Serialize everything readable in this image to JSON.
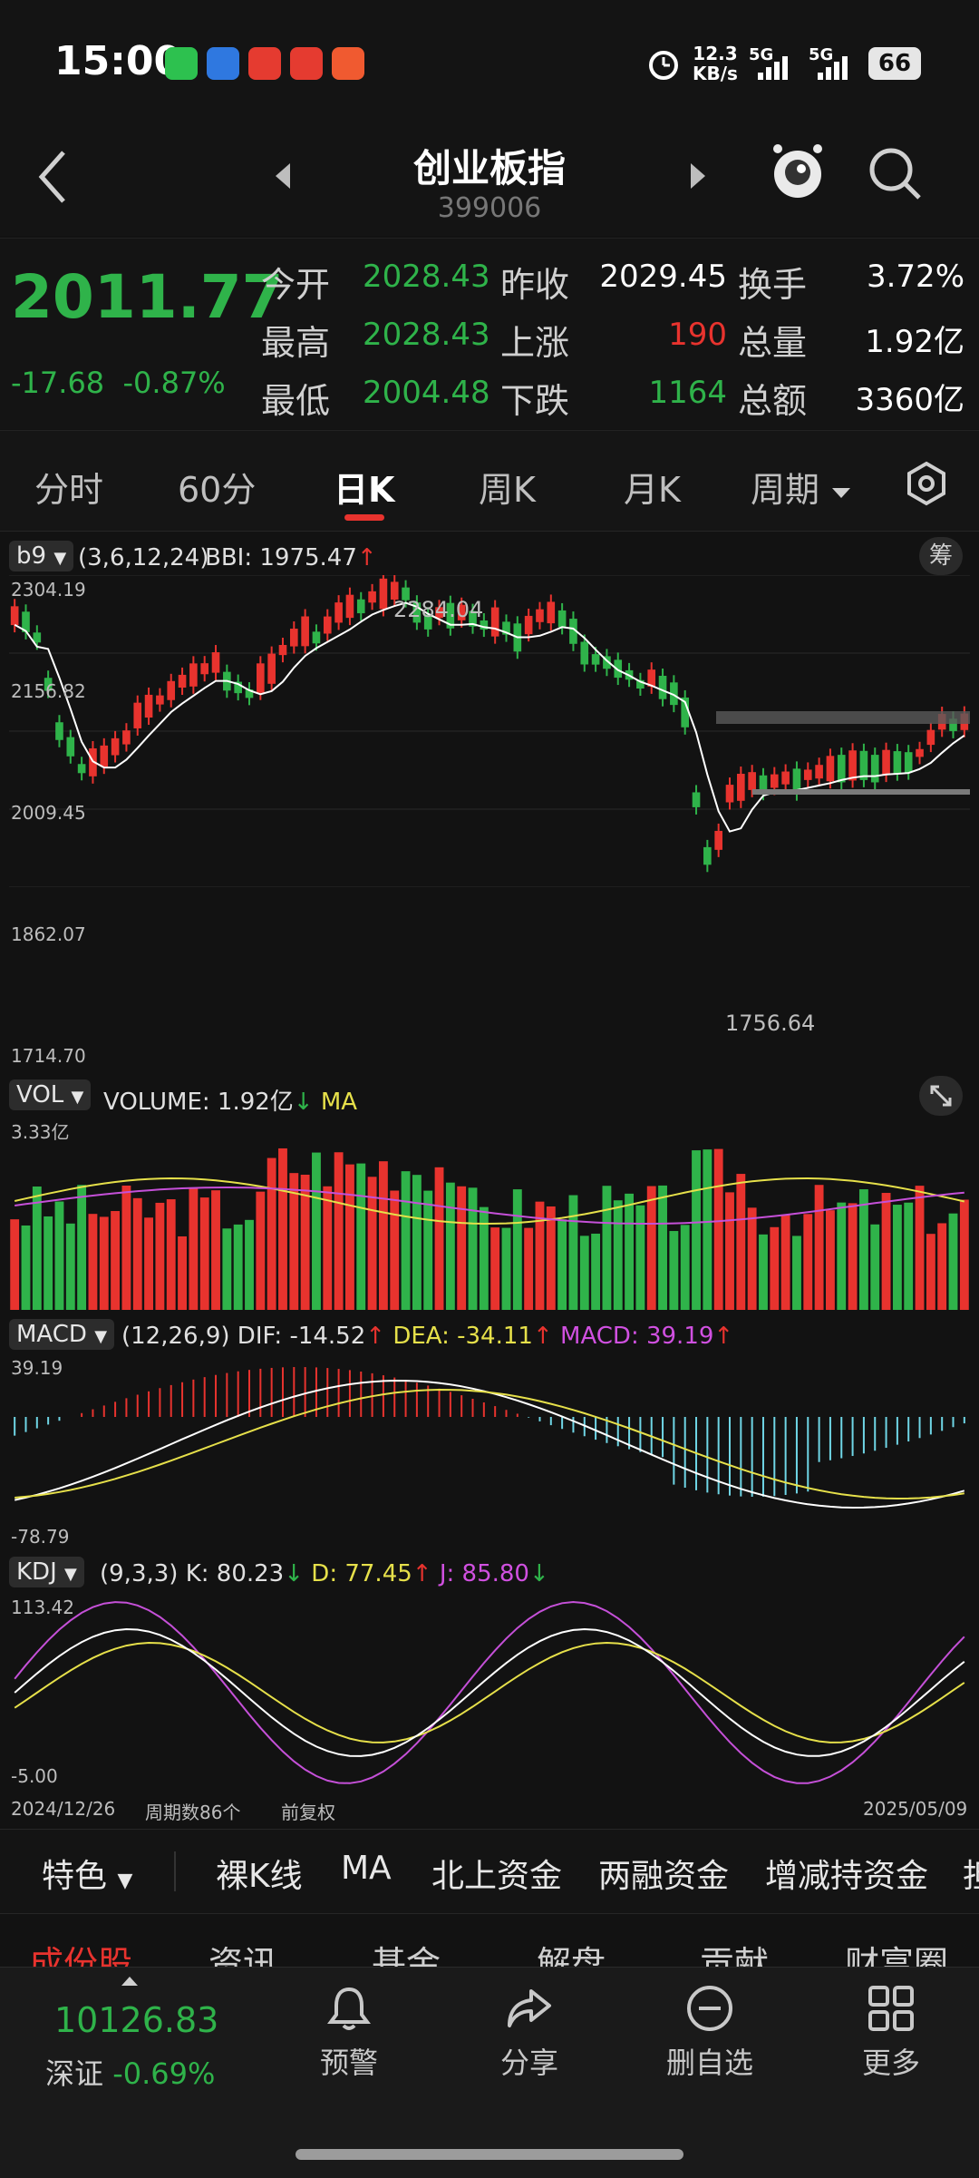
{
  "status_bar": {
    "time": "15:00",
    "apps": [
      "wechat-icon",
      "blue-app-icon",
      "red-app-icon-1",
      "red-app-icon-2",
      "red-app-icon-3"
    ],
    "net_speed": "12.3",
    "net_unit": "KB/s",
    "sim1": "5G",
    "sim2": "5G",
    "battery": "66"
  },
  "header": {
    "title": "创业板指",
    "code": "399006"
  },
  "quote": {
    "price": "2011.77",
    "change": "-17.68",
    "change_pct": "-0.87%",
    "open_label": "今开",
    "open": "2028.43",
    "high_label": "最高",
    "high": "2028.43",
    "low_label": "最低",
    "low": "2004.48",
    "prev_close_label": "昨收",
    "prev_close": "2029.45",
    "up_label": "上涨",
    "up": "190",
    "down_label": "下跌",
    "down": "1164",
    "turnover_label": "换手",
    "turnover": "3.72%",
    "volume_label": "总量",
    "volume": "1.92亿",
    "amount_label": "总额",
    "amount": "3360亿"
  },
  "tabs": {
    "items": [
      "分时",
      "60分",
      "日K",
      "周K",
      "月K",
      "周期"
    ],
    "active": "日K"
  },
  "main_chart": {
    "indicator": "b9",
    "params": "(3,6,12,24)",
    "bbi_label": "BBI: 1975.47",
    "chip_label": "筹",
    "y_top": "2304.19",
    "y_2": "2156.82",
    "y_3": "2009.45",
    "y_4": "1862.07",
    "y_bottom": "1714.70",
    "high_mark": "2284.04",
    "low_mark": "1756.64"
  },
  "vol_chart": {
    "indicator": "VOL",
    "volume_label": "VOLUME: 1.92亿",
    "ma_label": "MA",
    "y_top": "3.33亿"
  },
  "macd_chart": {
    "indicator": "MACD",
    "params": "(12,26,9)",
    "dif": "DIF: -14.52",
    "dea": "DEA: -34.11",
    "macd": "MACD: 39.19",
    "y_top": "39.19",
    "y_bottom": "-78.79"
  },
  "kdj_chart": {
    "indicator": "KDJ",
    "params": "(9,3,3)",
    "k": "K: 80.23",
    "d": "D: 77.45",
    "j": "J: 85.80",
    "y_top": "113.42",
    "y_bottom": "-5.00"
  },
  "date_axis": {
    "start": "2024/12/26",
    "periods": "周期数86个",
    "adjust": "前复权",
    "end": "2025/05/09"
  },
  "features": {
    "first": "特色",
    "items": [
      "裸K线",
      "MA",
      "北上资金",
      "两融资金",
      "增减持资金",
      "担"
    ]
  },
  "sections": [
    "成份股",
    "资讯",
    "基金",
    "解盘",
    "贡献",
    "财富圈"
  ],
  "bottom_nav": {
    "index_value": "10126.83",
    "index_name": "深证",
    "index_change": "-0.69%",
    "items": [
      "预警",
      "分享",
      "删自选",
      "更多"
    ]
  },
  "colors": {
    "up": "#e8332e",
    "down": "#2fb34a",
    "bbi": "#ffffff",
    "b9_label": "#e040e0",
    "b9_label_green": "#7bd83a",
    "ma_yellow": "#e6e04a",
    "ma_purple": "#c550d8",
    "macd_pos": "#e8332e",
    "macd_neg": "#6fd6e6"
  }
}
